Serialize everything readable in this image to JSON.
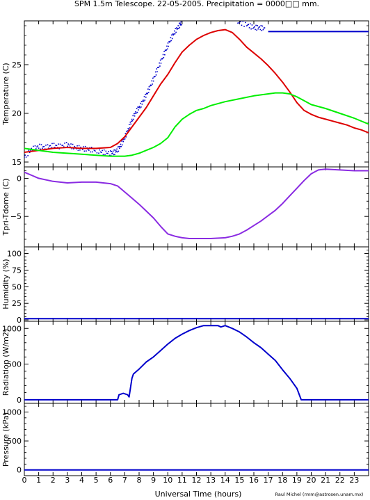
{
  "title": "SPM 1.5m Telescope. 22-05-2005. Precipitation = 0000□□ mm.",
  "xlabel": "Universal Time (hours)",
  "credit": "Raul Michel (rmm@astrosen.unam.mx)",
  "colors": {
    "blue": "#0000cc",
    "red": "#dd0000",
    "green": "#00ee00",
    "purple": "#8a2be2"
  },
  "chart_data": [
    {
      "type": "line",
      "ylabel": "Temperature (C)",
      "xlim": [
        0,
        24
      ],
      "ylim": [
        14.5,
        29.5
      ],
      "yticks": [
        15,
        20,
        25
      ],
      "series": [
        {
          "color": "blue",
          "style": "points",
          "x": [
            0,
            0.5,
            1,
            1.5,
            2,
            2.5,
            3,
            3.5,
            4,
            4.5,
            5,
            5.5,
            6,
            6.3,
            6.6,
            6.9,
            7.2,
            7.5,
            7.8,
            8.1,
            8.4,
            8.7,
            9,
            9.3,
            9.6,
            9.9,
            10.2,
            10.5,
            10.8,
            11,
            14.8,
            15.5,
            16,
            16.4,
            16.8
          ],
          "y": [
            15.5,
            16.3,
            16.6,
            16.5,
            16.7,
            16.6,
            16.8,
            16.5,
            16.4,
            16.3,
            16.2,
            16.0,
            15.9,
            16.0,
            16.4,
            17.2,
            18.2,
            19.3,
            20.2,
            20.8,
            21.6,
            22.5,
            23.5,
            24.6,
            25.6,
            26.6,
            27.6,
            28.4,
            29.0,
            29.4,
            29.4,
            29.1,
            28.8,
            28.8,
            28.7
          ]
        },
        {
          "color": "blue",
          "style": "line",
          "x": [
            17,
            24
          ],
          "y": [
            28.4,
            28.4
          ]
        },
        {
          "color": "red",
          "style": "line",
          "x": [
            0,
            0.5,
            1,
            2,
            3,
            4,
            5,
            6,
            6.5,
            7,
            7.5,
            8,
            8.5,
            9,
            9.5,
            10,
            10.5,
            11,
            11.5,
            12,
            12.5,
            13,
            13.5,
            14,
            14.5,
            15,
            15.5,
            16,
            16.5,
            17,
            17.5,
            18,
            18.5,
            19,
            19.5,
            20,
            20.5,
            21,
            21.5,
            22,
            22.5,
            23,
            23.5,
            24
          ],
          "y": [
            16.0,
            16.1,
            16.2,
            16.4,
            16.5,
            16.4,
            16.4,
            16.5,
            16.9,
            17.6,
            18.6,
            19.6,
            20.6,
            21.8,
            23.0,
            24.0,
            25.2,
            26.3,
            27.0,
            27.6,
            28.0,
            28.3,
            28.5,
            28.6,
            28.3,
            27.6,
            26.8,
            26.2,
            25.6,
            24.9,
            24.1,
            23.2,
            22.2,
            21.1,
            20.3,
            19.9,
            19.6,
            19.4,
            19.2,
            19.0,
            18.8,
            18.5,
            18.3,
            18.0
          ]
        },
        {
          "color": "green",
          "style": "line",
          "x": [
            0,
            1,
            2,
            3,
            4,
            5,
            6,
            7,
            7.5,
            8,
            8.5,
            9,
            9.5,
            10,
            10.5,
            11,
            11.5,
            12,
            12.5,
            13,
            14,
            15,
            16,
            17,
            17.5,
            18,
            18.5,
            19,
            19.5,
            20,
            21,
            22,
            23,
            24
          ],
          "y": [
            16.4,
            16.2,
            16.0,
            15.9,
            15.8,
            15.7,
            15.6,
            15.6,
            15.7,
            15.9,
            16.2,
            16.5,
            16.9,
            17.5,
            18.6,
            19.4,
            19.9,
            20.3,
            20.5,
            20.8,
            21.2,
            21.5,
            21.8,
            22.0,
            22.1,
            22.1,
            22.0,
            21.7,
            21.3,
            20.9,
            20.5,
            20.0,
            19.5,
            18.9
          ]
        }
      ]
    },
    {
      "type": "line",
      "ylabel": "Tpri-Tdome (C)",
      "xlim": [
        0,
        24
      ],
      "ylim": [
        -9,
        1.5
      ],
      "yticks": [
        -5,
        0
      ],
      "series": [
        {
          "color": "purple",
          "style": "line",
          "x": [
            0,
            0.5,
            1,
            2,
            3,
            4,
            5,
            6,
            6.5,
            7,
            7.5,
            8,
            8.5,
            9,
            9.5,
            10,
            10.5,
            11,
            11.5,
            12,
            13,
            14,
            14.5,
            15,
            15.5,
            16,
            16.5,
            17,
            17.5,
            18,
            18.5,
            19,
            19.5,
            20,
            20.5,
            21,
            22,
            23,
            24
          ],
          "y": [
            0.8,
            0.4,
            0.0,
            -0.4,
            -0.6,
            -0.5,
            -0.5,
            -0.7,
            -1.0,
            -1.8,
            -2.6,
            -3.4,
            -4.3,
            -5.2,
            -6.3,
            -7.3,
            -7.6,
            -7.8,
            -7.9,
            -7.9,
            -7.9,
            -7.8,
            -7.6,
            -7.3,
            -6.8,
            -6.2,
            -5.6,
            -4.9,
            -4.2,
            -3.3,
            -2.3,
            -1.3,
            -0.3,
            0.6,
            1.1,
            1.2,
            1.1,
            1.0,
            1.0
          ]
        }
      ]
    },
    {
      "type": "line",
      "ylabel": "Humidity (%)",
      "xlim": [
        0,
        24
      ],
      "ylim": [
        -2,
        110
      ],
      "yticks": [
        0,
        25,
        50,
        75,
        100
      ],
      "series": [
        {
          "color": "blue",
          "style": "line",
          "x": [
            0,
            24
          ],
          "y": [
            2,
            2
          ]
        }
      ]
    },
    {
      "type": "line",
      "ylabel": "Radiation (W/m2)",
      "xlim": [
        0,
        24
      ],
      "ylim": [
        -50,
        1100
      ],
      "yticks": [
        0,
        500,
        1000
      ],
      "series": [
        {
          "color": "blue",
          "style": "line",
          "x": [
            0,
            6.5,
            6.6,
            6.9,
            7.2,
            7.3,
            7.5,
            7.6,
            8,
            8.5,
            9,
            9.5,
            10,
            10.5,
            11,
            11.5,
            12,
            12.5,
            13,
            13.5,
            13.7,
            14,
            14.5,
            15,
            15.5,
            16,
            16.5,
            17,
            17.5,
            18,
            18.5,
            19,
            19.3,
            24
          ],
          "y": [
            0,
            0,
            70,
            90,
            70,
            40,
            300,
            360,
            430,
            530,
            600,
            690,
            780,
            860,
            920,
            970,
            1010,
            1040,
            1040,
            1040,
            1020,
            1040,
            1000,
            950,
            880,
            800,
            730,
            640,
            550,
            420,
            300,
            160,
            0,
            0
          ]
        }
      ]
    },
    {
      "type": "line",
      "ylabel": "Pressure (kPa)",
      "xlim": [
        0,
        24
      ],
      "ylim": [
        -100,
        1150
      ],
      "yticks": [
        0,
        500,
        1000
      ],
      "series": [
        {
          "color": "blue",
          "style": "line",
          "x": [
            0,
            24
          ],
          "y": [
            0,
            0
          ]
        }
      ]
    }
  ],
  "xticks": [
    0,
    1,
    2,
    3,
    4,
    5,
    6,
    7,
    8,
    9,
    10,
    11,
    12,
    13,
    14,
    15,
    16,
    17,
    18,
    19,
    20,
    21,
    22,
    23
  ]
}
